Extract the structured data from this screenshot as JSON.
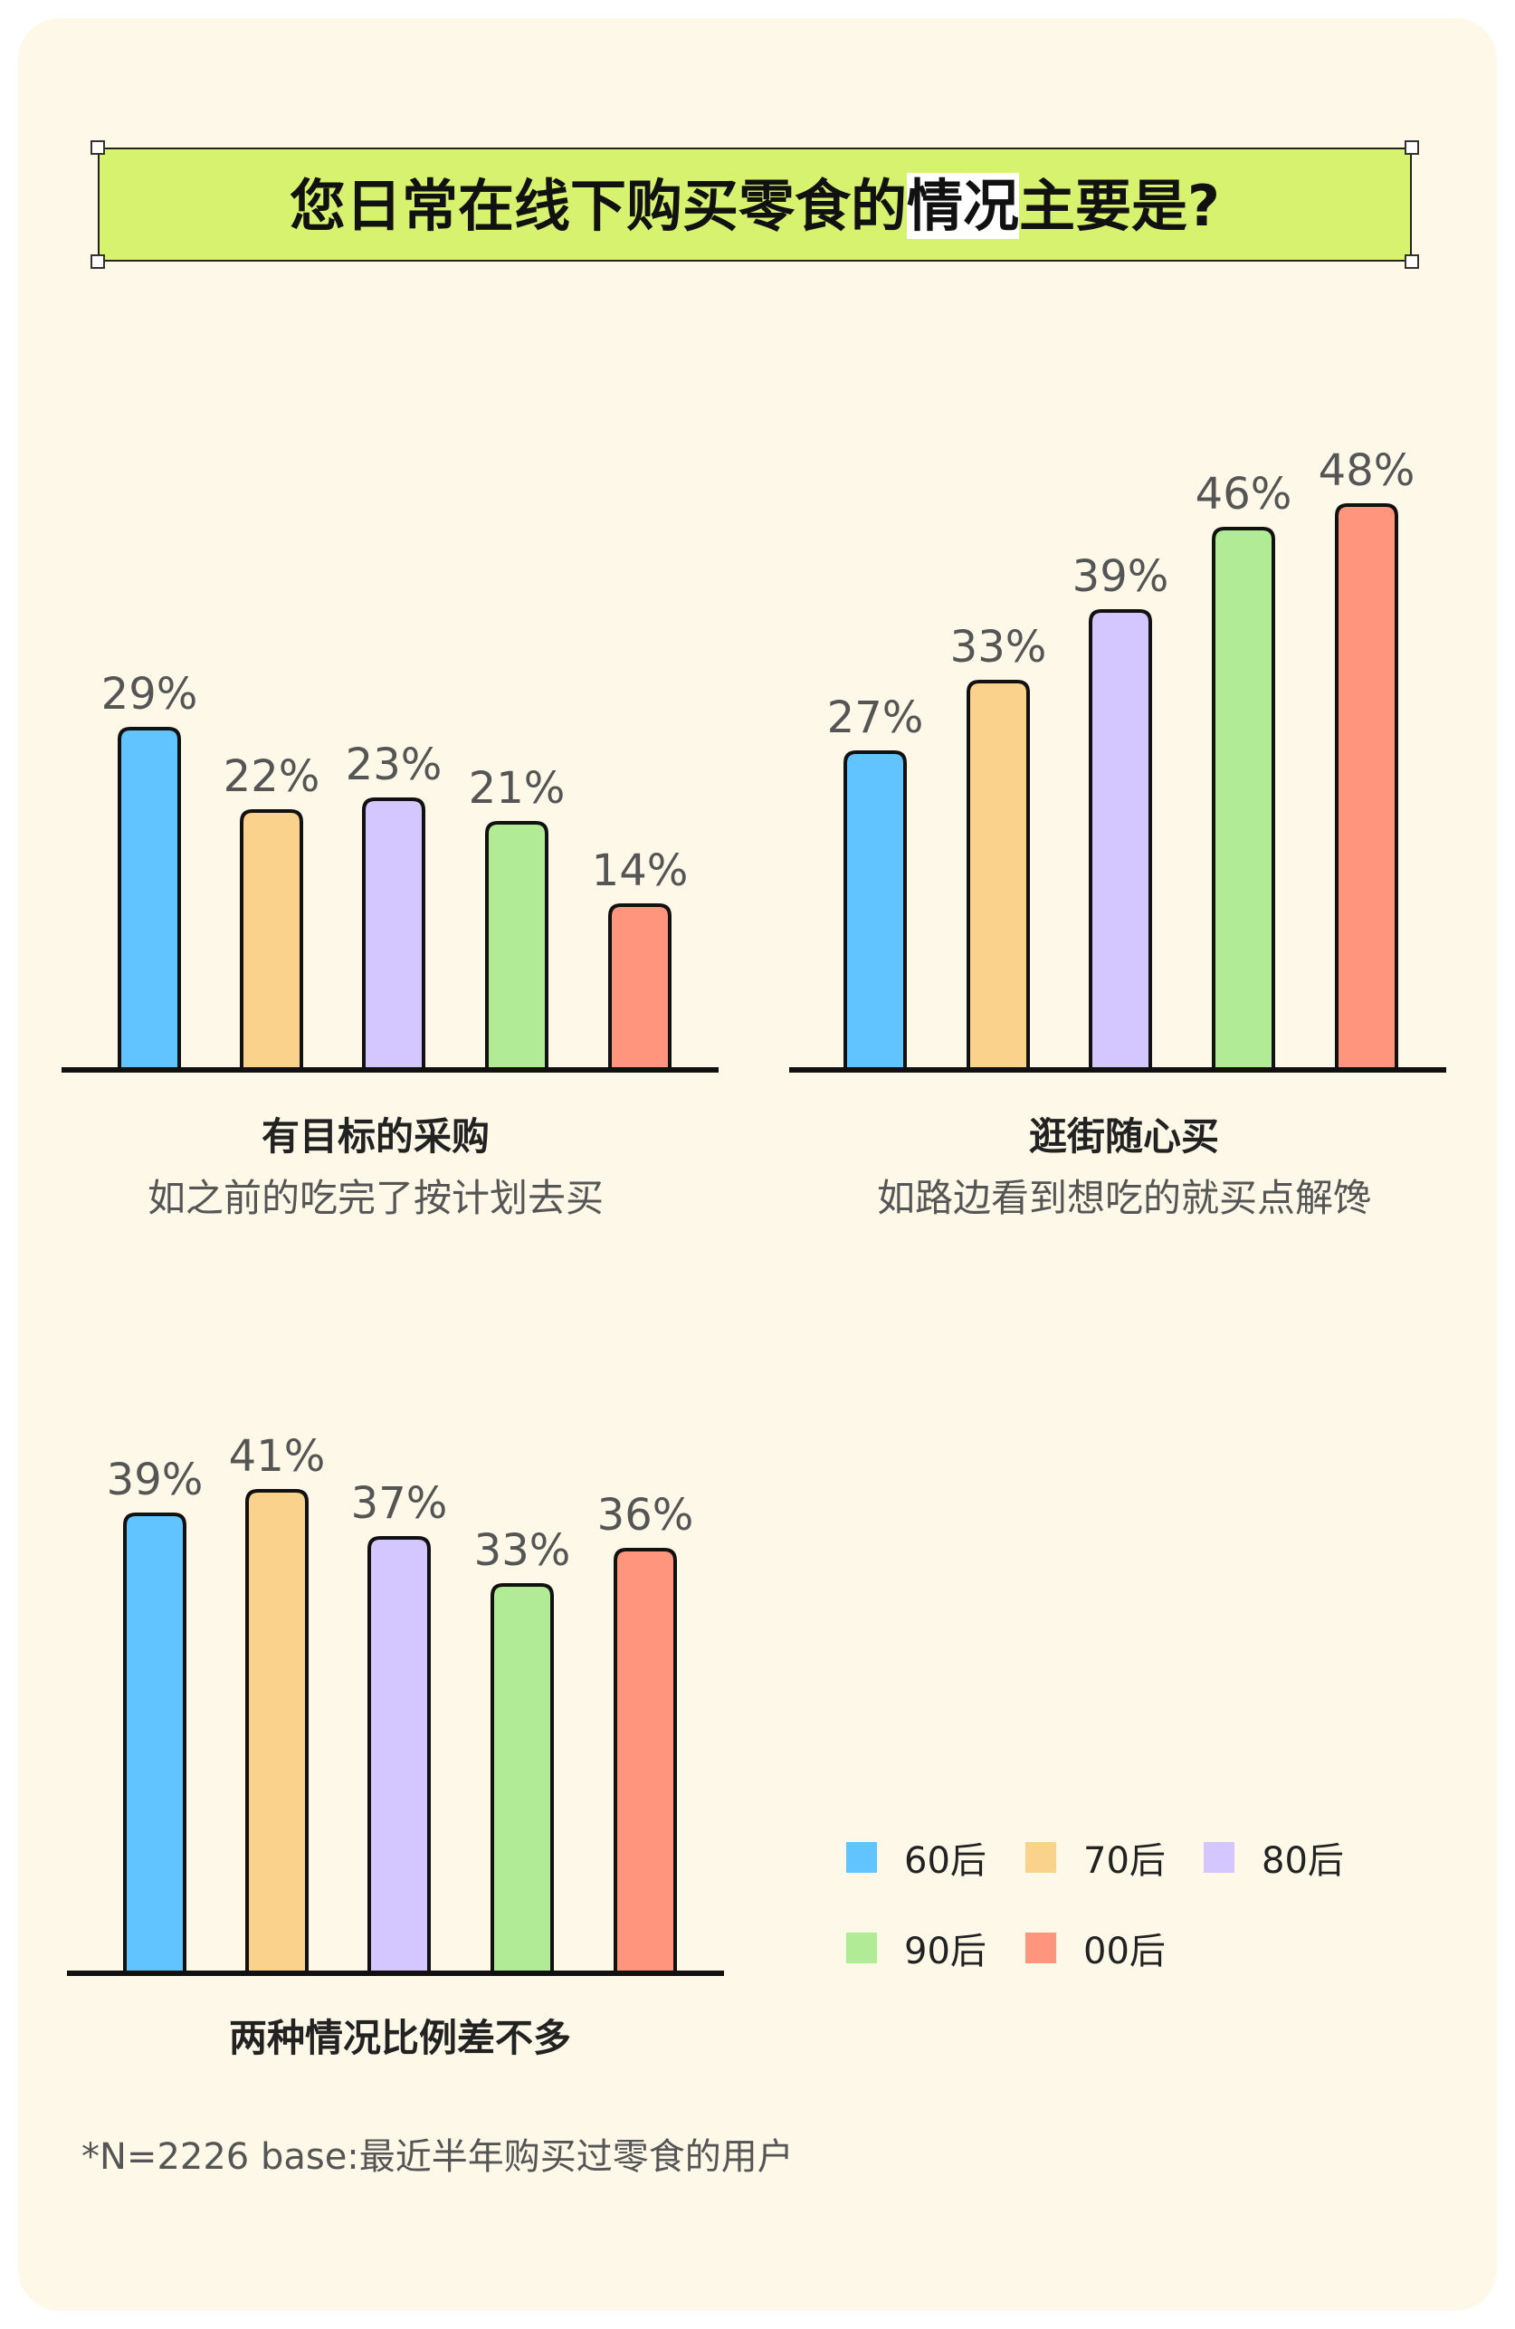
{
  "title": {
    "text_before": "您日常在线下购买零食的",
    "text_highlight": "情况",
    "text_after": "主要是?"
  },
  "colors": {
    "60后": "#62c4ff",
    "70后": "#fbd28b",
    "80后": "#d4c6ff",
    "90后": "#b2eb96",
    "00后": "#ff957d",
    "stroke": "#111111",
    "background": "#fdf8e8",
    "title_bg": "#d7f26f"
  },
  "chart_data": [
    {
      "type": "bar",
      "title": "有目标的采购",
      "subtitle": "如之前的吃完了按计划去买",
      "categories": [
        "60后",
        "70后",
        "80后",
        "90后",
        "00后"
      ],
      "values": [
        29,
        22,
        23,
        21,
        14
      ],
      "value_labels": [
        "29%",
        "22%",
        "23%",
        "21%",
        "14%"
      ],
      "ylim": [
        0,
        50
      ]
    },
    {
      "type": "bar",
      "title": "逛街随心买",
      "subtitle": "如路边看到想吃的就买点解馋",
      "categories": [
        "60后",
        "70后",
        "80后",
        "90后",
        "00后"
      ],
      "values": [
        27,
        33,
        39,
        46,
        48
      ],
      "value_labels": [
        "27%",
        "33%",
        "39%",
        "46%",
        "48%"
      ],
      "ylim": [
        0,
        50
      ]
    },
    {
      "type": "bar",
      "title": "两种情况比例差不多",
      "subtitle": "",
      "categories": [
        "60后",
        "70后",
        "80后",
        "90后",
        "00后"
      ],
      "values": [
        39,
        41,
        37,
        33,
        36
      ],
      "value_labels": [
        "39%",
        "41%",
        "37%",
        "33%",
        "36%"
      ],
      "ylim": [
        0,
        50
      ]
    }
  ],
  "legend": {
    "items": [
      "60后",
      "70后",
      "80后",
      "90后",
      "00后"
    ]
  },
  "footnote": "*N=2226 base:最近半年购买过零食的用户"
}
